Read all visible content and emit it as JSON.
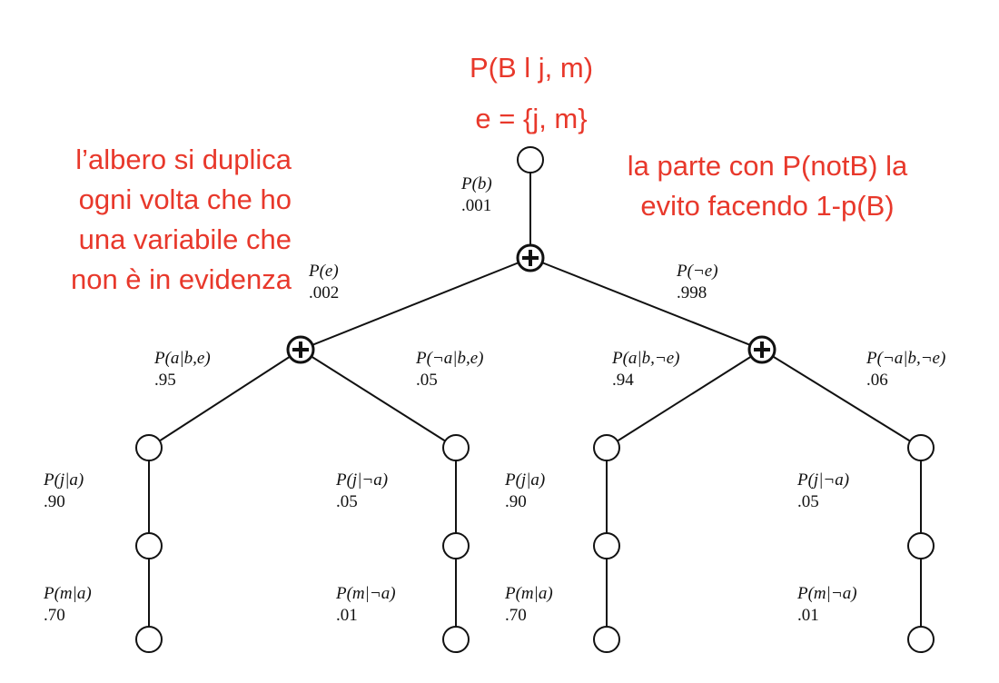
{
  "colors": {
    "annotation": "#e8382b",
    "tree": "#111111",
    "background": "#ffffff"
  },
  "annotations": {
    "query": "P(B l j, m)",
    "evidence": "e = {j, m}",
    "left_note": [
      "l’albero si duplica",
      "ogni volta che ho",
      "una variabile che",
      "non è in evidenza"
    ],
    "right_note": [
      "la parte con P(notB) la",
      "evito facendo 1-p(B)"
    ]
  },
  "tree": {
    "root": {
      "label": "P(b)",
      "value": ".001"
    },
    "level_e": [
      {
        "label": "P(e)",
        "value": ".002"
      },
      {
        "label": "P(¬e)",
        "value": ".998"
      }
    ],
    "level_a": [
      {
        "label": "P(a|b,e)",
        "value": ".95"
      },
      {
        "label": "P(¬a|b,e)",
        "value": ".05"
      },
      {
        "label": "P(a|b,¬e)",
        "value": ".94"
      },
      {
        "label": "P(¬a|b,¬e)",
        "value": ".06"
      }
    ],
    "level_j": [
      {
        "label": "P(j|a)",
        "value": ".90"
      },
      {
        "label": "P(j|¬a)",
        "value": ".05"
      },
      {
        "label": "P(j|a)",
        "value": ".90"
      },
      {
        "label": "P(j|¬a)",
        "value": ".05"
      }
    ],
    "level_m": [
      {
        "label": "P(m|a)",
        "value": ".70"
      },
      {
        "label": "P(m|¬a)",
        "value": ".01"
      },
      {
        "label": "P(m|a)",
        "value": ".70"
      },
      {
        "label": "P(m|¬a)",
        "value": ".01"
      }
    ]
  }
}
